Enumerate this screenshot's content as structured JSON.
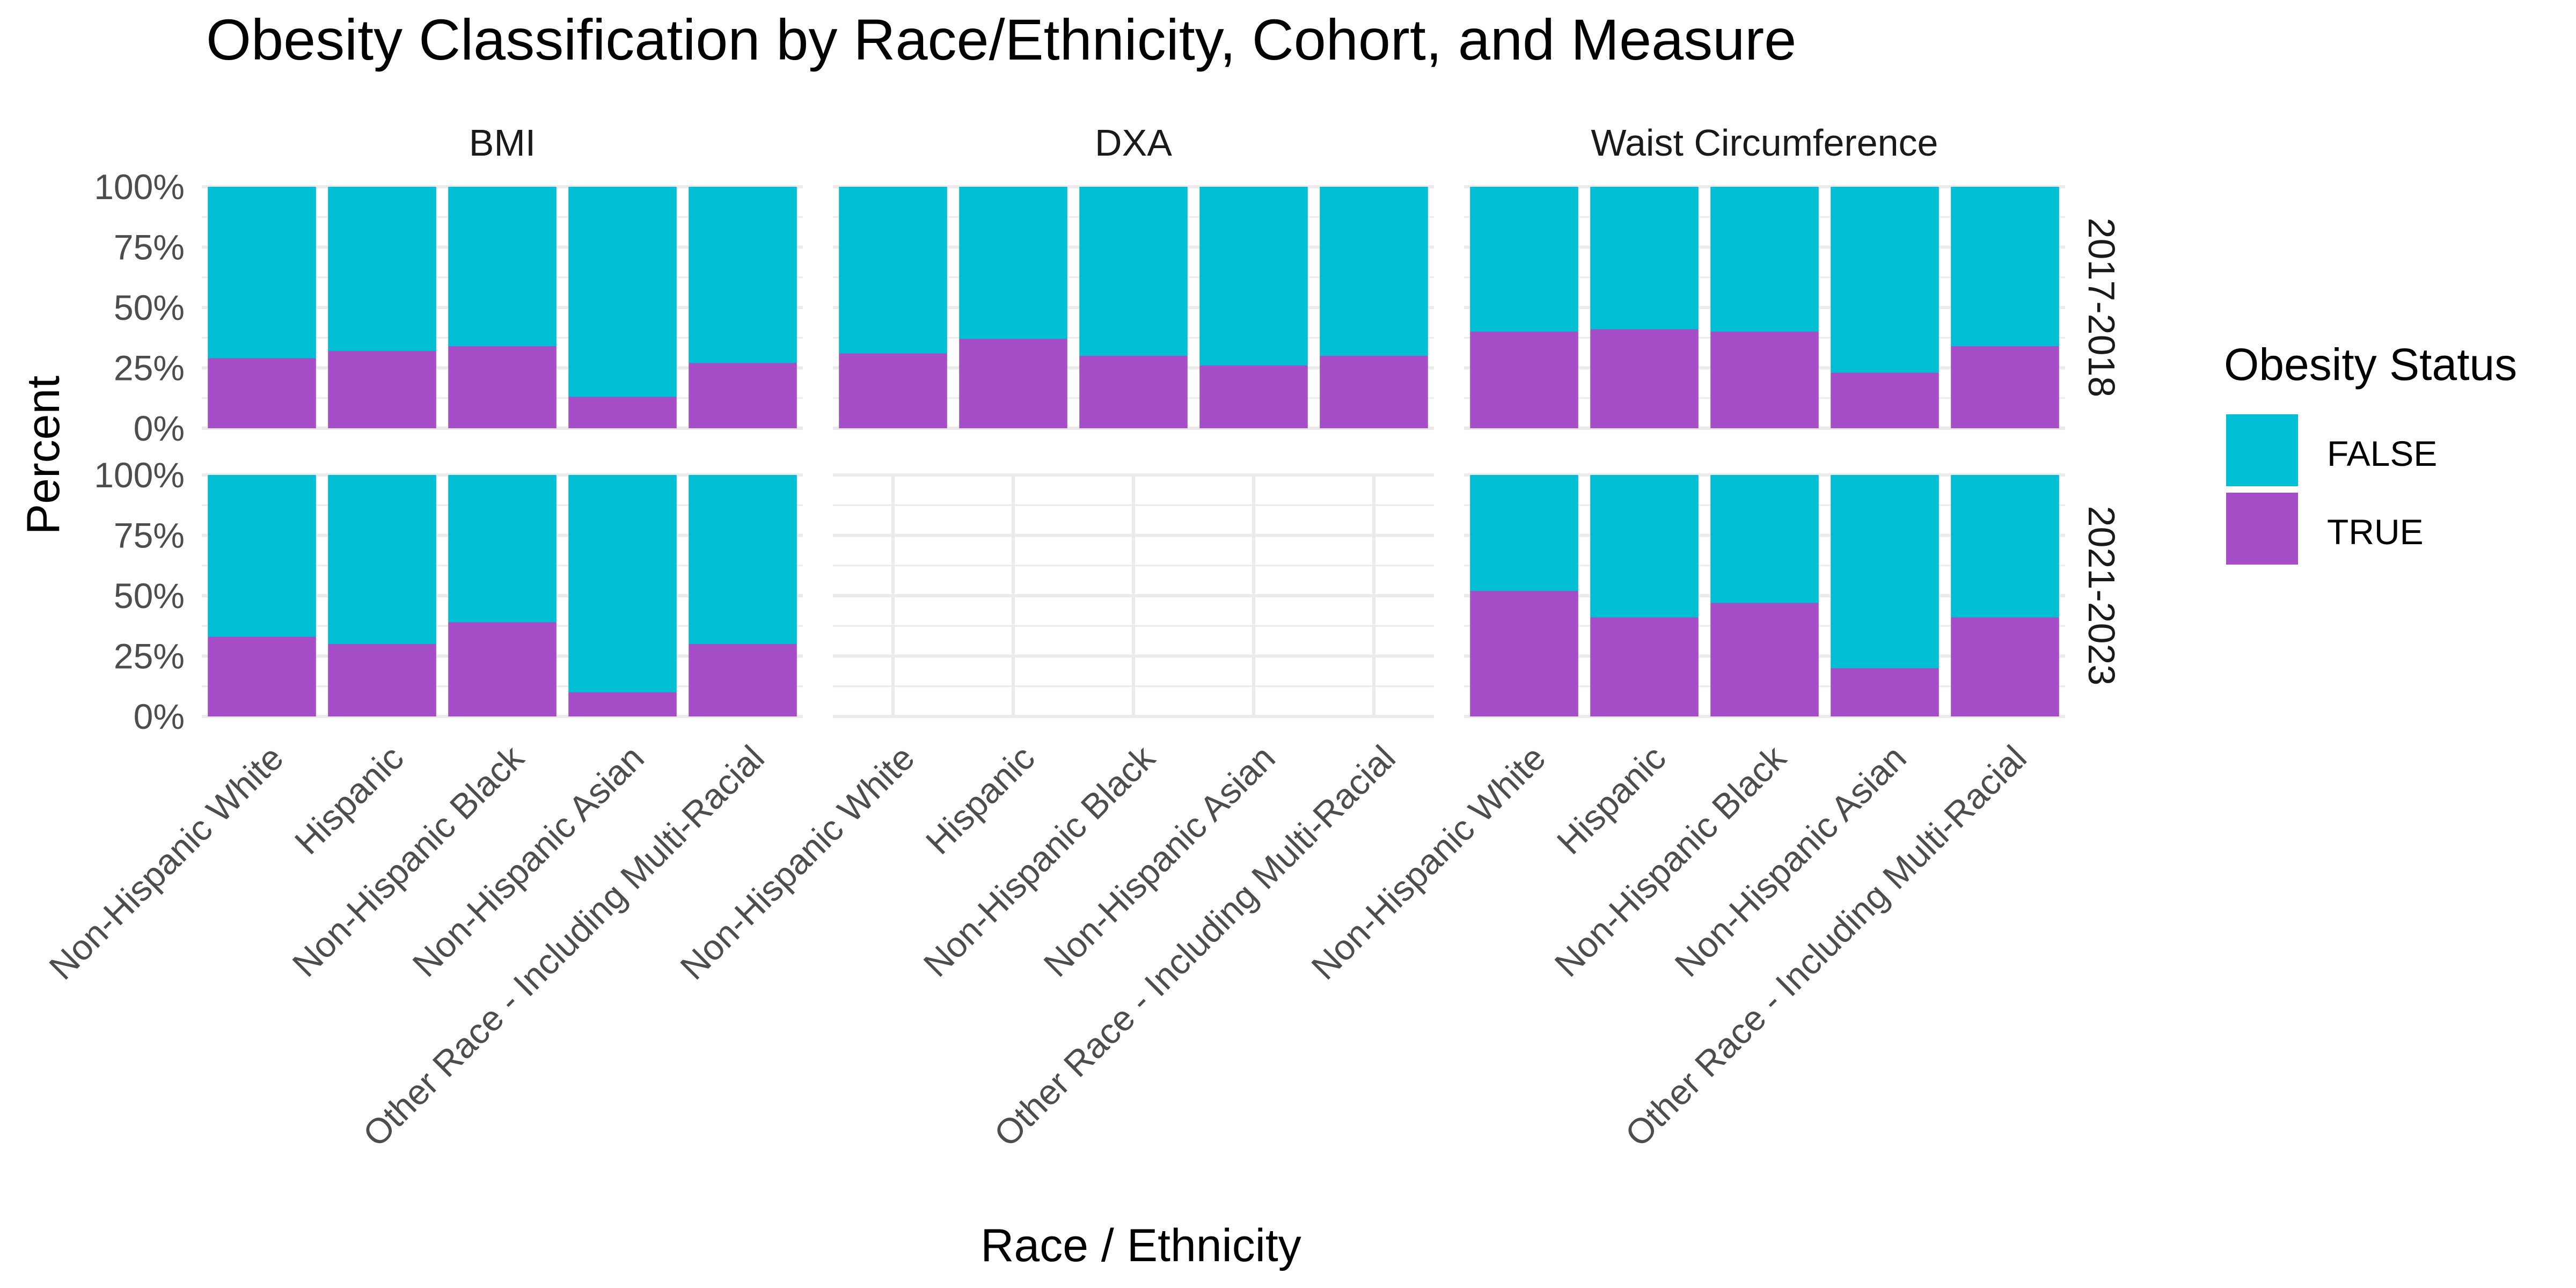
{
  "chart_data": {
    "type": "bar",
    "stacked": true,
    "title": "Obesity Classification by Race/Ethnicity, Cohort, and Measure",
    "xlabel": "Race / Ethnicity",
    "ylabel": "Percent",
    "ylim": [
      0,
      100
    ],
    "y_ticks": [
      "0%",
      "25%",
      "50%",
      "75%",
      "100%"
    ],
    "y_tick_values": [
      0,
      25,
      50,
      75,
      100
    ],
    "grid": true,
    "categories": [
      "Non-Hispanic White",
      "Hispanic",
      "Non-Hispanic Black",
      "Non-Hispanic Asian",
      "Other Race - Including Multi-Racial"
    ],
    "columns": [
      "BMI",
      "DXA",
      "Waist Circumference"
    ],
    "rows": [
      "2017-2018",
      "2021-2023"
    ],
    "legend": {
      "title": "Obesity Status",
      "position": "right",
      "entries": [
        {
          "label": "FALSE",
          "color": "#00BFD4"
        },
        {
          "label": "TRUE",
          "color": "#A64DC8"
        }
      ]
    },
    "colors": {
      "FALSE": "#00BFD4",
      "TRUE": "#A64DC8"
    },
    "true_percent": {
      "2017-2018": {
        "BMI": [
          29,
          32,
          34,
          13,
          27
        ],
        "DXA": [
          31,
          37,
          30,
          26,
          30
        ],
        "Waist Circumference": [
          40,
          41,
          40,
          23,
          34
        ]
      },
      "2021-2023": {
        "BMI": [
          33,
          30,
          39,
          10,
          30
        ],
        "DXA": [],
        "Waist Circumference": [
          52,
          41,
          47,
          20,
          41
        ]
      }
    }
  }
}
